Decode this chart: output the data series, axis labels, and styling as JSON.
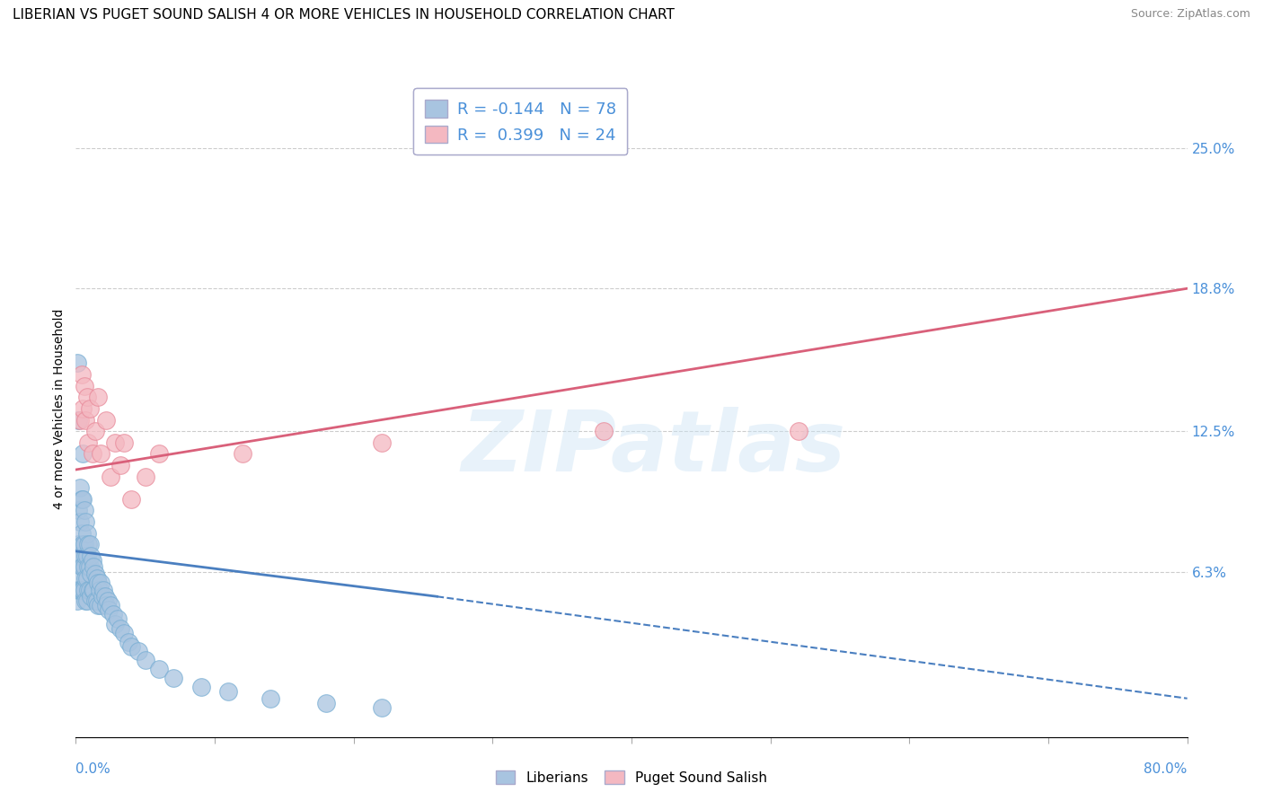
{
  "title": "LIBERIAN VS PUGET SOUND SALISH 4 OR MORE VEHICLES IN HOUSEHOLD CORRELATION CHART",
  "source": "Source: ZipAtlas.com",
  "ylabel": "4 or more Vehicles in Household",
  "ytick_values": [
    0.063,
    0.125,
    0.188,
    0.25
  ],
  "ytick_labels": [
    "6.3%",
    "12.5%",
    "18.8%",
    "25.0%"
  ],
  "xrange": [
    0.0,
    0.8
  ],
  "yrange": [
    -0.01,
    0.28
  ],
  "liberian_color": "#a8c4e0",
  "liberian_edge": "#7aafd4",
  "puget_color": "#f4b8c1",
  "puget_edge": "#e88a9a",
  "liberian_R": -0.144,
  "liberian_N": 78,
  "puget_R": 0.399,
  "puget_N": 24,
  "line_liberian_color": "#4a7fc0",
  "line_puget_color": "#d9607a",
  "watermark": "ZIPatlas",
  "lib_line_x0": 0.0,
  "lib_line_y0": 0.072,
  "lib_line_x1": 0.26,
  "lib_line_y1": 0.052,
  "lib_line_x2": 0.8,
  "lib_line_y2": 0.007,
  "pug_line_x0": 0.0,
  "pug_line_y0": 0.108,
  "pug_line_x1": 0.8,
  "pug_line_y1": 0.188,
  "liberian_scatter_x": [
    0.001,
    0.001,
    0.001,
    0.001,
    0.002,
    0.002,
    0.002,
    0.002,
    0.003,
    0.003,
    0.003,
    0.003,
    0.004,
    0.004,
    0.004,
    0.004,
    0.005,
    0.005,
    0.005,
    0.005,
    0.005,
    0.006,
    0.006,
    0.006,
    0.006,
    0.007,
    0.007,
    0.007,
    0.007,
    0.008,
    0.008,
    0.008,
    0.008,
    0.009,
    0.009,
    0.009,
    0.01,
    0.01,
    0.01,
    0.011,
    0.011,
    0.011,
    0.012,
    0.012,
    0.013,
    0.013,
    0.014,
    0.014,
    0.015,
    0.015,
    0.016,
    0.016,
    0.017,
    0.018,
    0.018,
    0.019,
    0.02,
    0.021,
    0.022,
    0.023,
    0.024,
    0.025,
    0.027,
    0.028,
    0.03,
    0.032,
    0.035,
    0.038,
    0.04,
    0.045,
    0.05,
    0.06,
    0.07,
    0.09,
    0.11,
    0.14,
    0.18,
    0.22
  ],
  "liberian_scatter_y": [
    0.155,
    0.07,
    0.06,
    0.05,
    0.13,
    0.09,
    0.075,
    0.055,
    0.1,
    0.085,
    0.07,
    0.055,
    0.095,
    0.08,
    0.065,
    0.055,
    0.115,
    0.095,
    0.075,
    0.065,
    0.055,
    0.09,
    0.075,
    0.065,
    0.055,
    0.085,
    0.07,
    0.06,
    0.05,
    0.08,
    0.07,
    0.06,
    0.05,
    0.075,
    0.065,
    0.055,
    0.075,
    0.065,
    0.055,
    0.07,
    0.062,
    0.052,
    0.068,
    0.055,
    0.065,
    0.055,
    0.062,
    0.05,
    0.06,
    0.05,
    0.058,
    0.048,
    0.055,
    0.058,
    0.048,
    0.052,
    0.055,
    0.052,
    0.048,
    0.05,
    0.046,
    0.048,
    0.044,
    0.04,
    0.042,
    0.038,
    0.036,
    0.032,
    0.03,
    0.028,
    0.024,
    0.02,
    0.016,
    0.012,
    0.01,
    0.007,
    0.005,
    0.003
  ],
  "puget_scatter_x": [
    0.003,
    0.004,
    0.005,
    0.006,
    0.007,
    0.008,
    0.009,
    0.01,
    0.012,
    0.014,
    0.016,
    0.018,
    0.022,
    0.025,
    0.028,
    0.032,
    0.035,
    0.04,
    0.05,
    0.06,
    0.12,
    0.22,
    0.38,
    0.52
  ],
  "puget_scatter_y": [
    0.13,
    0.15,
    0.135,
    0.145,
    0.13,
    0.14,
    0.12,
    0.135,
    0.115,
    0.125,
    0.14,
    0.115,
    0.13,
    0.105,
    0.12,
    0.11,
    0.12,
    0.095,
    0.105,
    0.115,
    0.115,
    0.12,
    0.125,
    0.125
  ]
}
